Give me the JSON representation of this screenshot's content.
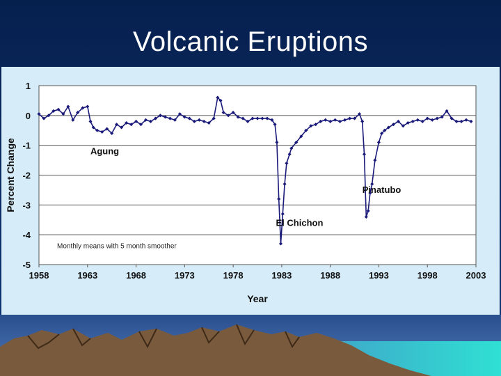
{
  "slide": {
    "title": "Volcanic Eruptions"
  },
  "colors": {
    "background_top": "#06204e",
    "background_bottom": "#12387a",
    "chart_panel": "#d6ecf8",
    "series": "#1a1a7a",
    "mountain": "#7a5a3c",
    "water": "#2fd6cf"
  },
  "icons": [
    "mountain-landscape-illustration"
  ],
  "chart_data": {
    "type": "line",
    "title": "",
    "xlabel": "Year",
    "ylabel": "Percent Change",
    "xlim": [
      1958,
      2003
    ],
    "ylim": [
      -5,
      1
    ],
    "x_ticks": [
      "1958",
      "1963",
      "1968",
      "1973",
      "1978",
      "1983",
      "1988",
      "1993",
      "1998",
      "2003"
    ],
    "y_ticks": [
      "1",
      "0",
      "-1",
      "-2",
      "-3",
      "-4",
      "-5"
    ],
    "grid": "horizontal",
    "note": "Monthly means with 5 month smoother",
    "annotations": [
      {
        "text": "Agung",
        "x": 1963.3,
        "y": -1.3
      },
      {
        "text": "El Chichon",
        "x": 1982.4,
        "y": -3.7
      },
      {
        "text": "Pinatubo",
        "x": 1991.3,
        "y": -2.6
      }
    ],
    "series": [
      {
        "style": "line-with-markers",
        "x": [
          1958.0,
          1958.5,
          1959.0,
          1959.5,
          1960.0,
          1960.5,
          1961.0,
          1961.5,
          1962.0,
          1962.5,
          1963.0,
          1963.3,
          1963.6,
          1964.0,
          1964.5,
          1965.0,
          1965.5,
          1966.0,
          1966.5,
          1967.0,
          1967.5,
          1968.0,
          1968.5,
          1969.0,
          1969.5,
          1970.0,
          1970.5,
          1971.0,
          1971.5,
          1972.0,
          1972.5,
          1973.0,
          1973.5,
          1974.0,
          1974.5,
          1975.0,
          1975.5,
          1976.0,
          1976.4,
          1976.7,
          1977.0,
          1977.5,
          1978.0,
          1978.5,
          1979.0,
          1979.5,
          1980.0,
          1980.5,
          1981.0,
          1981.5,
          1982.0,
          1982.3,
          1982.5,
          1982.7,
          1982.9,
          1983.1,
          1983.3,
          1983.5,
          1983.8,
          1984.0,
          1984.5,
          1985.0,
          1985.5,
          1986.0,
          1986.5,
          1987.0,
          1987.5,
          1988.0,
          1988.5,
          1989.0,
          1989.5,
          1990.0,
          1990.5,
          1991.0,
          1991.3,
          1991.5,
          1991.7,
          1991.9,
          1992.1,
          1992.3,
          1992.6,
          1993.0,
          1993.3,
          1993.6,
          1994.0,
          1994.5,
          1995.0,
          1995.5,
          1996.0,
          1996.5,
          1997.0,
          1997.5,
          1998.0,
          1998.5,
          1999.0,
          1999.5,
          2000.0,
          2000.5,
          2001.0,
          2001.5,
          2002.0,
          2002.5
        ],
        "y": [
          0.05,
          -0.1,
          0.0,
          0.15,
          0.2,
          0.05,
          0.3,
          -0.15,
          0.1,
          0.25,
          0.3,
          -0.2,
          -0.4,
          -0.5,
          -0.55,
          -0.45,
          -0.6,
          -0.3,
          -0.4,
          -0.25,
          -0.3,
          -0.2,
          -0.3,
          -0.15,
          -0.2,
          -0.1,
          0.0,
          -0.05,
          -0.1,
          -0.15,
          0.05,
          -0.05,
          -0.1,
          -0.2,
          -0.15,
          -0.2,
          -0.25,
          -0.1,
          0.6,
          0.5,
          0.1,
          0.0,
          0.1,
          -0.05,
          -0.1,
          -0.2,
          -0.1,
          -0.1,
          -0.1,
          -0.1,
          -0.15,
          -0.3,
          -0.9,
          -2.8,
          -4.3,
          -3.3,
          -2.3,
          -1.6,
          -1.3,
          -1.1,
          -0.9,
          -0.7,
          -0.5,
          -0.35,
          -0.3,
          -0.2,
          -0.15,
          -0.2,
          -0.15,
          -0.2,
          -0.15,
          -0.1,
          -0.1,
          0.05,
          -0.2,
          -1.3,
          -3.4,
          -3.2,
          -2.6,
          -2.3,
          -1.5,
          -0.9,
          -0.6,
          -0.5,
          -0.4,
          -0.3,
          -0.2,
          -0.35,
          -0.25,
          -0.2,
          -0.15,
          -0.2,
          -0.1,
          -0.15,
          -0.1,
          -0.05,
          0.15,
          -0.1,
          -0.2,
          -0.2,
          -0.15,
          -0.2
        ]
      }
    ]
  }
}
